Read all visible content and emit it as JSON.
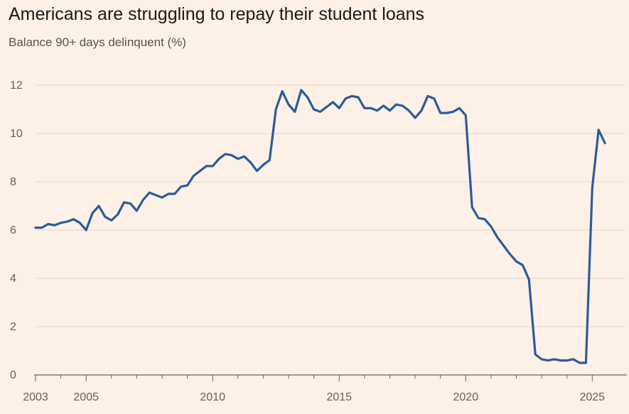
{
  "title": "Americans are struggling to repay their student loans",
  "subtitle": "Balance 90+ days delinquent (%)",
  "chart_data": {
    "type": "line",
    "title": "Americans are struggling to repay their student loans",
    "subtitle": "Balance 90+ days delinquent (%)",
    "xlabel": "",
    "ylabel": "",
    "xlim": [
      2003,
      2025.75
    ],
    "ylim": [
      0,
      12
    ],
    "x_ticks": [
      2003,
      2005,
      2010,
      2015,
      2020,
      2025
    ],
    "y_ticks": [
      0,
      2,
      4,
      6,
      8,
      10,
      12
    ],
    "grid": "horizontal",
    "legend": "none",
    "line_color": "#2a5d99",
    "series": [
      {
        "x": [
          2003,
          2003.25,
          2003.5,
          2003.75,
          2004,
          2004.25,
          2004.5,
          2004.75,
          2005,
          2005.25,
          2005.5,
          2005.75,
          2006,
          2006.25,
          2006.5,
          2006.75,
          2007,
          2007.25,
          2007.5,
          2007.75,
          2008,
          2008.25,
          2008.5,
          2008.75,
          2009,
          2009.25,
          2009.5,
          2009.75,
          2010,
          2010.25,
          2010.5,
          2010.75,
          2011,
          2011.25,
          2011.5,
          2011.75,
          2012,
          2012.25,
          2012.5,
          2012.75,
          2013,
          2013.25,
          2013.5,
          2013.75,
          2014,
          2014.25,
          2014.5,
          2014.75,
          2015,
          2015.25,
          2015.5,
          2015.75,
          2016,
          2016.25,
          2016.5,
          2016.75,
          2017,
          2017.25,
          2017.5,
          2017.75,
          2018,
          2018.25,
          2018.5,
          2018.75,
          2019,
          2019.25,
          2019.5,
          2019.75,
          2020,
          2020.25,
          2020.5,
          2020.75,
          2021,
          2021.25,
          2021.5,
          2021.75,
          2022,
          2022.25,
          2022.5,
          2022.75,
          2023,
          2023.25,
          2023.5,
          2023.75,
          2024,
          2024.25,
          2024.5,
          2024.75,
          2025,
          2025.25,
          2025.5
        ],
        "values": [
          6.1,
          6.1,
          6.25,
          6.2,
          6.3,
          6.35,
          6.45,
          6.3,
          6.0,
          6.7,
          7.0,
          6.55,
          6.4,
          6.65,
          7.15,
          7.1,
          6.8,
          7.25,
          7.55,
          7.45,
          7.35,
          7.5,
          7.5,
          7.8,
          7.85,
          8.25,
          8.45,
          8.65,
          8.65,
          8.95,
          9.15,
          9.1,
          8.95,
          9.05,
          8.8,
          8.45,
          8.7,
          8.9,
          11.0,
          11.75,
          11.2,
          10.9,
          11.8,
          11.5,
          11.0,
          10.9,
          11.1,
          11.3,
          11.05,
          11.45,
          11.55,
          11.5,
          11.05,
          11.05,
          10.95,
          11.15,
          10.95,
          11.2,
          11.15,
          10.95,
          10.65,
          10.95,
          11.55,
          11.45,
          10.85,
          10.85,
          10.9,
          11.05,
          10.75,
          6.95,
          6.5,
          6.45,
          6.15,
          5.7,
          5.35,
          5.0,
          4.7,
          4.55,
          3.95,
          0.85,
          0.65,
          0.6,
          0.65,
          0.6,
          0.6,
          0.65,
          0.5,
          0.5,
          7.75,
          10.15,
          9.6
        ]
      }
    ]
  }
}
